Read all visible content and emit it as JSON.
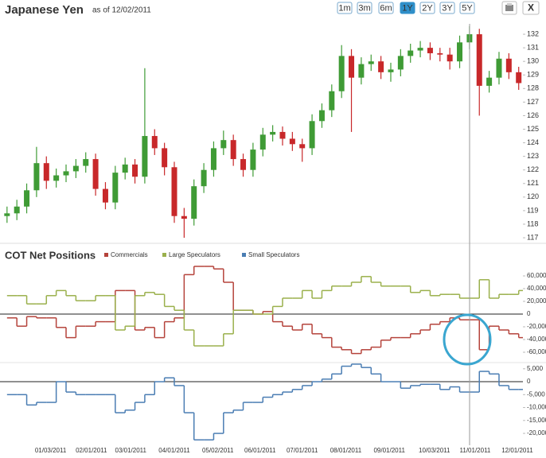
{
  "controls": {
    "ranges": [
      "1m",
      "3m",
      "6m",
      "1Y",
      "2Y",
      "3Y",
      "5Y"
    ],
    "active": "1Y",
    "close": "X"
  },
  "chart_data": [
    {
      "type": "candlestick",
      "title": "Japanese Yen",
      "subtitle": "as of 12/02/2011",
      "up_color": "#3f9b35",
      "down_color": "#c8282a",
      "xlim": [
        "11/28/2010",
        "12/05/2011"
      ],
      "x": [
        "12/03/2010",
        "12/10/2010",
        "12/17/2010",
        "12/24/2010",
        "12/31/2010",
        "01/07/2011",
        "01/14/2011",
        "01/21/2011",
        "01/28/2011",
        "02/04/2011",
        "02/11/2011",
        "02/18/2011",
        "02/25/2011",
        "03/04/2011",
        "03/11/2011",
        "03/18/2011",
        "03/25/2011",
        "04/01/2011",
        "04/08/2011",
        "04/15/2011",
        "04/22/2011",
        "04/29/2011",
        "05/06/2011",
        "05/13/2011",
        "05/20/2011",
        "05/27/2011",
        "06/03/2011",
        "06/10/2011",
        "06/17/2011",
        "06/24/2011",
        "07/01/2011",
        "07/08/2011",
        "07/15/2011",
        "07/22/2011",
        "07/29/2011",
        "08/05/2011",
        "08/12/2011",
        "08/19/2011",
        "08/26/2011",
        "09/02/2011",
        "09/09/2011",
        "09/16/2011",
        "09/23/2011",
        "09/30/2011",
        "10/07/2011",
        "10/14/2011",
        "10/21/2011",
        "10/28/2011",
        "11/04/2011",
        "11/11/2011",
        "11/18/2011",
        "11/25/2011",
        "12/02/2011"
      ],
      "open": [
        118.6,
        118.8,
        119.3,
        120.5,
        122.5,
        121.2,
        121.6,
        121.9,
        122.3,
        122.8,
        120.6,
        119.6,
        121.8,
        122.4,
        121.5,
        124.5,
        123.6,
        122.2,
        118.6,
        118.4,
        120.8,
        122.0,
        123.6,
        124.2,
        122.8,
        122.0,
        123.5,
        124.6,
        124.8,
        124.3,
        123.9,
        123.6,
        125.6,
        126.4,
        127.8,
        130.4,
        128.8,
        129.8,
        130.0,
        129.2,
        129.4,
        130.4,
        130.8,
        131.0,
        130.6,
        130.5,
        130.0,
        131.4,
        132.0,
        128.2,
        128.8,
        130.2,
        129.2
      ],
      "high": [
        119.3,
        119.8,
        121.0,
        123.7,
        123.0,
        122.1,
        122.4,
        122.8,
        123.3,
        123.2,
        121.1,
        122.3,
        122.9,
        122.8,
        129.5,
        125.0,
        124.0,
        122.6,
        119.2,
        121.3,
        122.5,
        124.1,
        124.9,
        124.6,
        123.2,
        124.0,
        125.1,
        125.3,
        125.2,
        124.8,
        124.3,
        126.1,
        126.9,
        128.3,
        131.2,
        130.9,
        130.3,
        130.5,
        130.4,
        129.9,
        130.9,
        131.3,
        131.5,
        131.4,
        131.0,
        131.0,
        131.9,
        132.6,
        132.4,
        129.3,
        130.7,
        130.6,
        129.6
      ],
      "low": [
        118.1,
        118.3,
        118.8,
        120.0,
        120.6,
        120.7,
        121.1,
        121.4,
        121.8,
        120.1,
        119.1,
        119.1,
        121.3,
        121.0,
        121.0,
        123.1,
        121.6,
        118.1,
        117.0,
        117.9,
        120.3,
        121.5,
        123.1,
        122.3,
        121.5,
        121.5,
        123.0,
        124.1,
        123.8,
        123.4,
        122.6,
        123.1,
        125.1,
        125.9,
        127.3,
        124.8,
        128.3,
        129.3,
        128.7,
        128.5,
        128.9,
        129.9,
        130.3,
        130.1,
        130.0,
        129.4,
        129.5,
        130.9,
        126.0,
        127.7,
        128.3,
        128.7,
        127.9
      ],
      "close": [
        118.8,
        119.3,
        120.5,
        122.5,
        121.2,
        121.6,
        121.9,
        122.3,
        122.8,
        120.6,
        119.6,
        121.8,
        122.4,
        121.5,
        124.5,
        123.6,
        122.2,
        118.6,
        118.4,
        120.8,
        122.0,
        123.6,
        124.2,
        122.8,
        122.0,
        123.5,
        124.6,
        124.8,
        124.3,
        123.9,
        123.6,
        125.6,
        126.4,
        127.8,
        130.4,
        128.8,
        129.8,
        130.0,
        129.2,
        129.4,
        130.4,
        130.8,
        131.0,
        130.6,
        130.5,
        130.0,
        131.4,
        132.0,
        128.2,
        128.8,
        130.2,
        129.2,
        128.4
      ],
      "ylim": [
        116.65,
        133
      ],
      "yticks": [
        117,
        118,
        119,
        120,
        121,
        122,
        123,
        124,
        125,
        126,
        127,
        128,
        129,
        130,
        131,
        132
      ]
    },
    {
      "type": "step",
      "title": "COT Net Positions",
      "xlim": [
        "11/28/2010",
        "12/05/2011"
      ],
      "x": [
        "12/03/2010",
        "12/10/2010",
        "12/17/2010",
        "12/24/2010",
        "12/31/2010",
        "01/07/2011",
        "01/14/2011",
        "01/21/2011",
        "01/28/2011",
        "02/04/2011",
        "02/11/2011",
        "02/18/2011",
        "02/25/2011",
        "03/04/2011",
        "03/11/2011",
        "03/18/2011",
        "03/25/2011",
        "04/01/2011",
        "04/08/2011",
        "04/15/2011",
        "04/22/2011",
        "04/29/2011",
        "05/06/2011",
        "05/13/2011",
        "05/20/2011",
        "05/27/2011",
        "06/03/2011",
        "06/10/2011",
        "06/17/2011",
        "06/24/2011",
        "07/01/2011",
        "07/08/2011",
        "07/15/2011",
        "07/22/2011",
        "07/29/2011",
        "08/05/2011",
        "08/12/2011",
        "08/19/2011",
        "08/26/2011",
        "09/02/2011",
        "09/09/2011",
        "09/16/2011",
        "09/23/2011",
        "09/30/2011",
        "10/07/2011",
        "10/14/2011",
        "10/21/2011",
        "10/28/2011",
        "11/04/2011",
        "11/11/2011",
        "11/18/2011",
        "11/25/2011",
        "12/02/2011"
      ],
      "xticks": [
        "01/03/2011",
        "02/01/2011",
        "03/01/2011",
        "04/01/2011",
        "05/02/2011",
        "06/01/2011",
        "07/01/2011",
        "08/01/2011",
        "09/01/2011",
        "10/03/2011",
        "11/01/2011",
        "12/01/2011"
      ],
      "series": [
        {
          "name": "Commercials",
          "color": "#b5433b",
          "values": [
            -6000,
            -19000,
            -4000,
            -6000,
            -6000,
            -21000,
            -37000,
            -19000,
            -19000,
            -12000,
            -12000,
            37000,
            37000,
            -25000,
            -21000,
            -37000,
            -12000,
            -6000,
            62000,
            75000,
            75000,
            71000,
            50000,
            6000,
            6000,
            0,
            4000,
            -12000,
            -19000,
            -25000,
            -16000,
            -31000,
            -37000,
            -52000,
            -56000,
            -62000,
            -56000,
            -52000,
            -41000,
            -37000,
            -37000,
            -31000,
            -25000,
            -16000,
            -12000,
            -6000,
            -9000,
            -9000,
            -56000,
            -19000,
            -25000,
            -31000,
            -37000
          ]
        },
        {
          "name": "Large Speculators",
          "color": "#9ab04c",
          "values": [
            29000,
            29000,
            16000,
            16000,
            29000,
            37000,
            29000,
            21000,
            21000,
            29000,
            29000,
            -25000,
            -19000,
            29000,
            34000,
            31000,
            12000,
            6000,
            -25000,
            -50000,
            -50000,
            -50000,
            -31000,
            6000,
            6000,
            0,
            0,
            12000,
            25000,
            25000,
            37000,
            25000,
            37000,
            44000,
            44000,
            50000,
            59000,
            50000,
            44000,
            44000,
            44000,
            34000,
            37000,
            29000,
            31000,
            31000,
            25000,
            25000,
            54000,
            25000,
            31000,
            31000,
            37000
          ]
        },
        {
          "name": "Small Speculators",
          "color": "#4a7db3",
          "axis": "y2",
          "values": [
            -5000,
            -5000,
            -9000,
            -8000,
            -8000,
            0,
            -4000,
            -5000,
            -5000,
            -5000,
            -5000,
            -12000,
            -11000,
            -8000,
            -5000,
            0,
            1500,
            -1500,
            -12000,
            -22500,
            -22500,
            -20000,
            -12000,
            -11000,
            -8000,
            -8000,
            -6000,
            -5000,
            -4000,
            -3000,
            -1500,
            0,
            1000,
            3000,
            6000,
            6800,
            5500,
            3000,
            0,
            0,
            -2500,
            -1500,
            -1000,
            -1000,
            -3000,
            -2000,
            -4000,
            -4000,
            4000,
            3000,
            -1500,
            -3000,
            -3000
          ]
        }
      ],
      "ylim": [
        -75000,
        75000
      ],
      "yticks": [
        {
          "value": 60000,
          "label": "60,000"
        },
        {
          "value": 40000,
          "label": "40,000"
        },
        {
          "value": 20000,
          "label": "20,000"
        },
        0,
        {
          "value": -20000,
          "label": "-20,000"
        },
        {
          "value": -40000,
          "label": "-40,000"
        },
        {
          "value": -60000,
          "label": "-60,000"
        }
      ],
      "y2lim": [
        -24600,
        7400
      ],
      "y2ticks": [
        {
          "value": 5000,
          "label": "5,000"
        },
        0,
        {
          "value": -5000,
          "label": "-5,000"
        },
        {
          "value": -10000,
          "label": "-10,000"
        },
        {
          "value": -15000,
          "label": "-15,000"
        },
        {
          "value": -20000,
          "label": "-20,000"
        }
      ]
    }
  ]
}
